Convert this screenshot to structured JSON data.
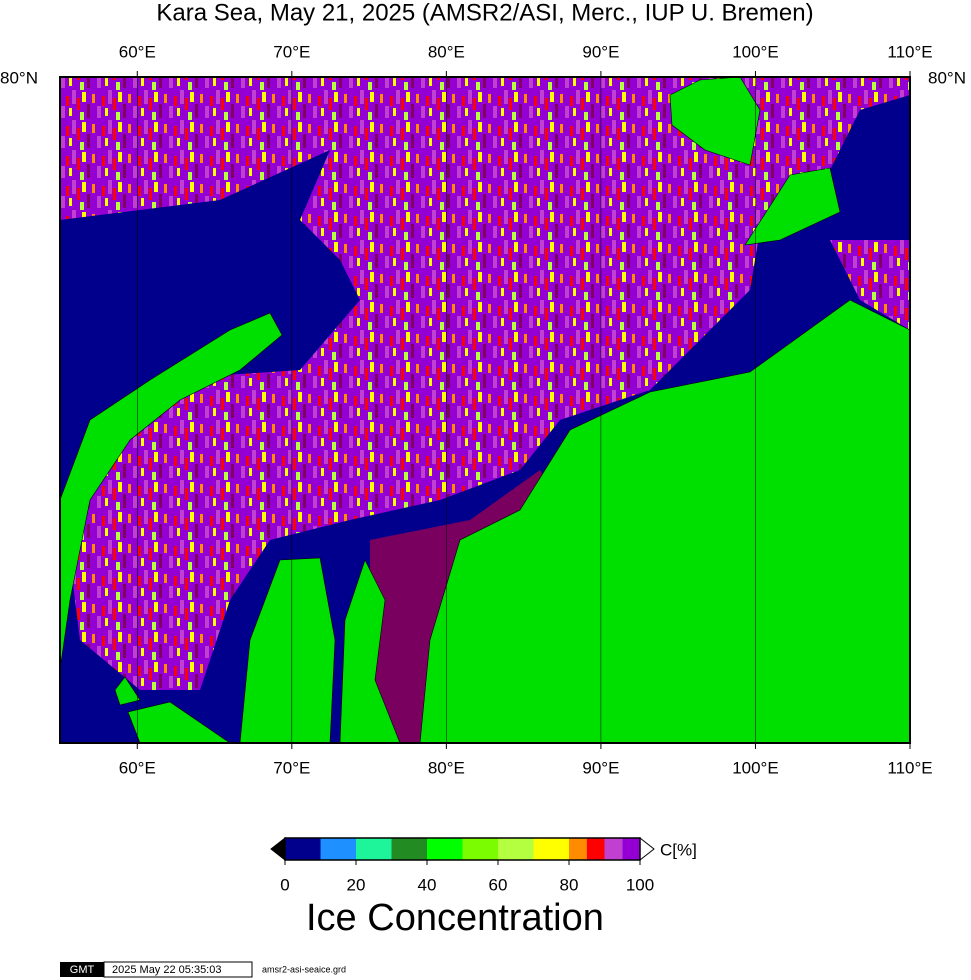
{
  "title": "Kara Sea, May 21, 2025 (AMSR2/ASI, Merc., IUP U. Bremen)",
  "map": {
    "lon_range": [
      55,
      110
    ],
    "lon_ticks": [
      {
        "value": 60,
        "label": "60°E"
      },
      {
        "value": 70,
        "label": "70°E"
      },
      {
        "value": 80,
        "label": "80°E"
      },
      {
        "value": 90,
        "label": "90°E"
      },
      {
        "value": 100,
        "label": "100°E"
      },
      {
        "value": 110,
        "label": "110°E"
      }
    ],
    "lat_label": "80°N"
  },
  "colorbar": {
    "range": [
      0,
      100
    ],
    "unit": "C[%]",
    "title": "Ice Concentration",
    "ticks": [
      0,
      20,
      40,
      60,
      80,
      100
    ],
    "bins": [
      {
        "from": 0,
        "to": 10,
        "color": "#00008c"
      },
      {
        "from": 10,
        "to": 20,
        "color": "#1e90ff"
      },
      {
        "from": 20,
        "to": 30,
        "color": "#1ef59b"
      },
      {
        "from": 30,
        "to": 40,
        "color": "#228b22"
      },
      {
        "from": 40,
        "to": 50,
        "color": "#00ff00"
      },
      {
        "from": 50,
        "to": 60,
        "color": "#7cfc00"
      },
      {
        "from": 60,
        "to": 70,
        "color": "#b3ff40"
      },
      {
        "from": 70,
        "to": 80,
        "color": "#ffff00"
      },
      {
        "from": 80,
        "to": 85,
        "color": "#ff8c00"
      },
      {
        "from": 85,
        "to": 90,
        "color": "#ff0000"
      },
      {
        "from": 90,
        "to": 95,
        "color": "#c040d0"
      },
      {
        "from": 95,
        "to": 100,
        "color": "#9400d3"
      }
    ]
  },
  "footer": {
    "logo": "GMT",
    "timestamp": "2025 May 22 05:35:03",
    "file": "amsr2-asi-seaice.grd"
  }
}
